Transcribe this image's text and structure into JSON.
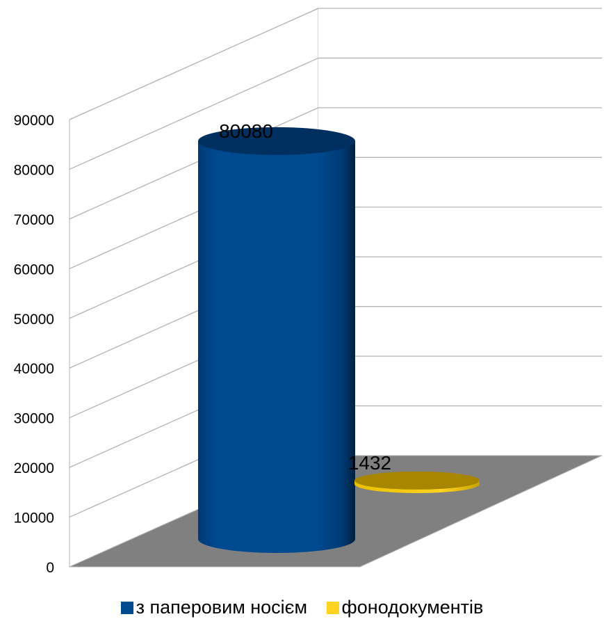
{
  "chart_data": {
    "type": "bar",
    "style": "3d-cylinder",
    "series": [
      {
        "name": "з паперовим носієм",
        "value": 80080,
        "color": "#004a91"
      },
      {
        "name": "фонодокументів",
        "value": 1432,
        "color": "#ffd320"
      }
    ],
    "y_ticks": [
      "0",
      "10000",
      "20000",
      "30000",
      "40000",
      "50000",
      "60000",
      "70000",
      "80000",
      "90000"
    ],
    "ylim": [
      0,
      90000
    ],
    "grid": true,
    "legend_position": "bottom",
    "floor_color": "#808080"
  },
  "legend": {
    "item_0": "з паперовим носієм",
    "item_1": "фонодокументів"
  }
}
